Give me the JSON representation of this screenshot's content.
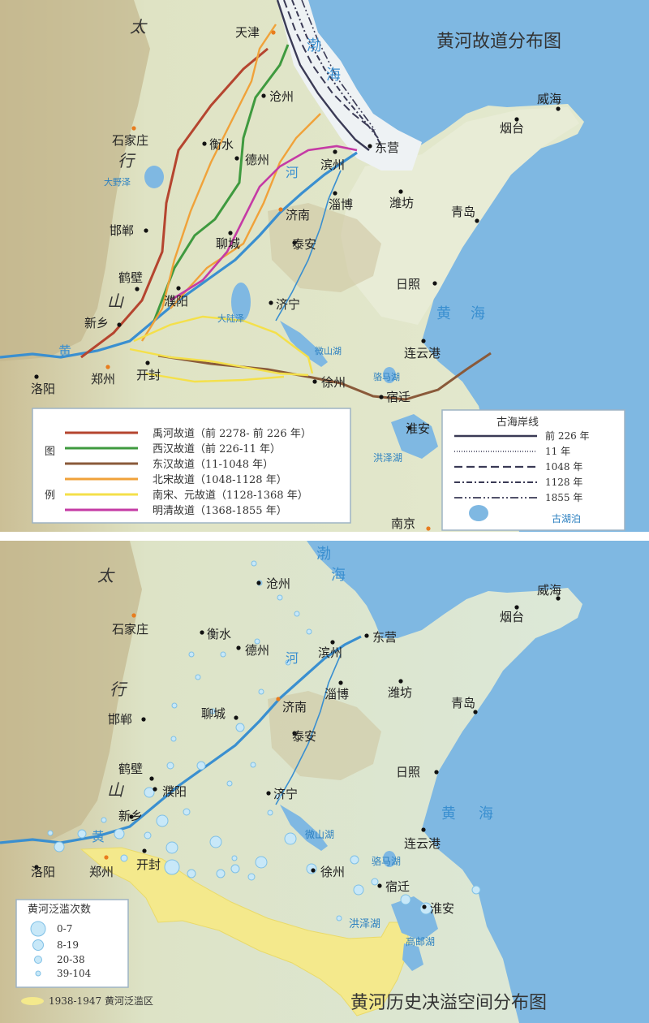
{
  "colors": {
    "sea": "#7fb8e2",
    "land": "#dfe6c9",
    "mountain": "#c9bd98",
    "river": "#3a8fd0",
    "yu": "#b5452f",
    "xihan": "#3f9a3f",
    "donghan": "#8a5a3a",
    "beisong": "#f0a23a",
    "nansong": "#f4e04a",
    "mingqing": "#c53ba5",
    "flood_zone": "#f4e98c",
    "bubble": "#c8e8f8"
  },
  "top": {
    "title": "黄河故道分布图",
    "sea_labels": [
      {
        "name": "bohai-1",
        "text": "渤"
      },
      {
        "name": "bohai-2",
        "text": "海"
      },
      {
        "name": "huanghai-1",
        "text": "黄"
      },
      {
        "name": "huanghai-2",
        "text": "海"
      },
      {
        "name": "river-he",
        "text": "河"
      },
      {
        "name": "river-huang",
        "text": "黄"
      }
    ],
    "mountain_labels": [
      "太",
      "行",
      "山"
    ],
    "lakes": [
      "大野泽",
      "大陆泽",
      "微山湖",
      "骆马湖",
      "洪泽湖"
    ],
    "cities": [
      {
        "name": "天津",
        "cap": true
      },
      {
        "name": "沧州",
        "cap": false
      },
      {
        "name": "石家庄",
        "cap": true
      },
      {
        "name": "衡水",
        "cap": false
      },
      {
        "name": "德州",
        "cap": false
      },
      {
        "name": "滨州",
        "cap": false
      },
      {
        "name": "东营",
        "cap": false
      },
      {
        "name": "威海",
        "cap": false
      },
      {
        "name": "烟台",
        "cap": false
      },
      {
        "name": "济南",
        "cap": true
      },
      {
        "name": "淄博",
        "cap": false
      },
      {
        "name": "潍坊",
        "cap": false
      },
      {
        "name": "青岛",
        "cap": false
      },
      {
        "name": "邯郸",
        "cap": false
      },
      {
        "name": "聊城",
        "cap": false
      },
      {
        "name": "泰安",
        "cap": false
      },
      {
        "name": "鹤壁",
        "cap": false
      },
      {
        "name": "濮阳",
        "cap": false
      },
      {
        "name": "济宁",
        "cap": false
      },
      {
        "name": "日照",
        "cap": false
      },
      {
        "name": "新乡",
        "cap": false
      },
      {
        "name": "连云港",
        "cap": false
      },
      {
        "name": "郑州",
        "cap": true
      },
      {
        "name": "开封",
        "cap": false
      },
      {
        "name": "徐州",
        "cap": false
      },
      {
        "name": "洛阳",
        "cap": false
      },
      {
        "name": "宿迁",
        "cap": false
      },
      {
        "name": "淮安",
        "cap": false
      },
      {
        "name": "南京",
        "cap": true
      }
    ],
    "legend": {
      "label_1": "图",
      "label_2": "例",
      "items": [
        {
          "key": "yu",
          "text": "禹河故道（前 2278- 前 226 年）"
        },
        {
          "key": "xihan",
          "text": "西汉故道（前 226-11 年）"
        },
        {
          "key": "donghan",
          "text": "东汉故道（11-1048 年）"
        },
        {
          "key": "beisong",
          "text": "北宋故道（1048-1128 年）"
        },
        {
          "key": "nansong",
          "text": "南宋、元故道（1128-1368 年）"
        },
        {
          "key": "mingqing",
          "text": "明清故道（1368-1855 年）"
        }
      ]
    },
    "coast_legend": {
      "title": "古海岸线",
      "items": [
        "前 226 年",
        "11 年",
        "1048 年",
        "1128 年",
        "1855 年"
      ],
      "lake_label": "古湖泊"
    }
  },
  "bottom": {
    "title": "黄河历史决溢空间分布图",
    "sea_labels": [
      {
        "name": "bohai-1",
        "text": "渤"
      },
      {
        "name": "bohai-2",
        "text": "海"
      },
      {
        "name": "huanghai-1",
        "text": "黄"
      },
      {
        "name": "huanghai-2",
        "text": "海"
      },
      {
        "name": "river-he",
        "text": "河"
      },
      {
        "name": "river-huang",
        "text": "黄"
      }
    ],
    "mountain_labels": [
      "太",
      "行",
      "山"
    ],
    "lakes": [
      "微山湖",
      "骆马湖",
      "洪泽湖",
      "高邮湖"
    ],
    "cities": [
      {
        "name": "沧州",
        "cap": false
      },
      {
        "name": "威海",
        "cap": false
      },
      {
        "name": "石家庄",
        "cap": true
      },
      {
        "name": "衡水",
        "cap": false
      },
      {
        "name": "烟台",
        "cap": false
      },
      {
        "name": "德州",
        "cap": false
      },
      {
        "name": "滨州",
        "cap": false
      },
      {
        "name": "东营",
        "cap": false
      },
      {
        "name": "淄博",
        "cap": false
      },
      {
        "name": "潍坊",
        "cap": false
      },
      {
        "name": "青岛",
        "cap": false
      },
      {
        "name": "邯郸",
        "cap": false
      },
      {
        "name": "聊城",
        "cap": false
      },
      {
        "name": "济南",
        "cap": true
      },
      {
        "name": "泰安",
        "cap": false
      },
      {
        "name": "鹤壁",
        "cap": false
      },
      {
        "name": "濮阳",
        "cap": false
      },
      {
        "name": "日照",
        "cap": false
      },
      {
        "name": "济宁",
        "cap": false
      },
      {
        "name": "新乡",
        "cap": false
      },
      {
        "name": "连云港",
        "cap": false
      },
      {
        "name": "开封",
        "cap": false
      },
      {
        "name": "洛阳",
        "cap": false
      },
      {
        "name": "郑州",
        "cap": true
      },
      {
        "name": "徐州",
        "cap": false
      },
      {
        "name": "宿迁",
        "cap": false
      },
      {
        "name": "淮安",
        "cap": false
      }
    ],
    "legend": {
      "title": "黄河泛滥次数",
      "classes": [
        "0-7",
        "8-19",
        "20-38",
        "39-104"
      ]
    },
    "flood_zone_label": "1938-1947 黄河泛滥区"
  }
}
